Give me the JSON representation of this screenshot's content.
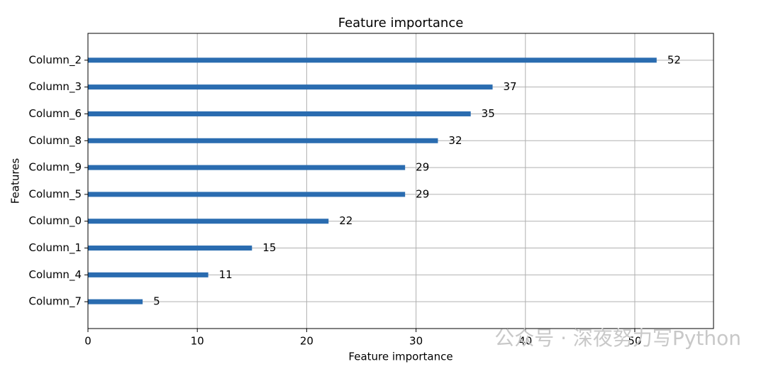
{
  "chart_data": {
    "type": "barh",
    "title": "Feature importance",
    "x_label": "Feature importance",
    "y_label": "Features",
    "categories": [
      "Column_2",
      "Column_3",
      "Column_6",
      "Column_8",
      "Column_9",
      "Column_5",
      "Column_0",
      "Column_1",
      "Column_4",
      "Column_7"
    ],
    "values": [
      52,
      37,
      35,
      32,
      29,
      29,
      22,
      15,
      11,
      5
    ],
    "color": "#2a6cb0",
    "xlim": [
      0,
      57.2
    ],
    "xticks": [
      0,
      10,
      20,
      30,
      40,
      50
    ],
    "grid": true,
    "watermark": "公众号 · 深夜努力写Python"
  }
}
